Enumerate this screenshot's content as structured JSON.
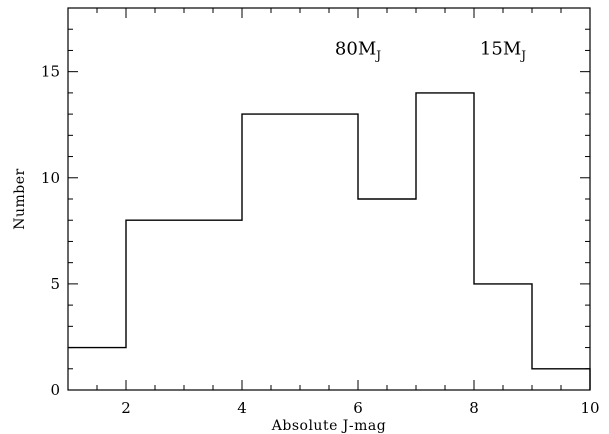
{
  "chart_data": {
    "type": "bar",
    "style": "step-histogram",
    "bin_edges": [
      1,
      2,
      4,
      6,
      7,
      8,
      9,
      10
    ],
    "values": [
      2,
      8,
      13,
      9,
      14,
      5,
      1
    ],
    "xlabel": "Absolute J-mag",
    "ylabel": "Number",
    "xlim": [
      1,
      10
    ],
    "ylim": [
      0,
      18
    ],
    "x_major_ticks": [
      2,
      4,
      6,
      8,
      10
    ],
    "x_minor_step": 0.5,
    "y_major_ticks": [
      0,
      5,
      10,
      15
    ],
    "y_minor_step": 1,
    "grid": false,
    "annotations": [
      {
        "text": "80M",
        "sub": "J",
        "x": 6,
        "y": 15.8
      },
      {
        "text": "15M",
        "sub": "J",
        "x": 8.5,
        "y": 15.8
      }
    ],
    "colors": {
      "line": "#000000",
      "background": "#ffffff"
    }
  }
}
